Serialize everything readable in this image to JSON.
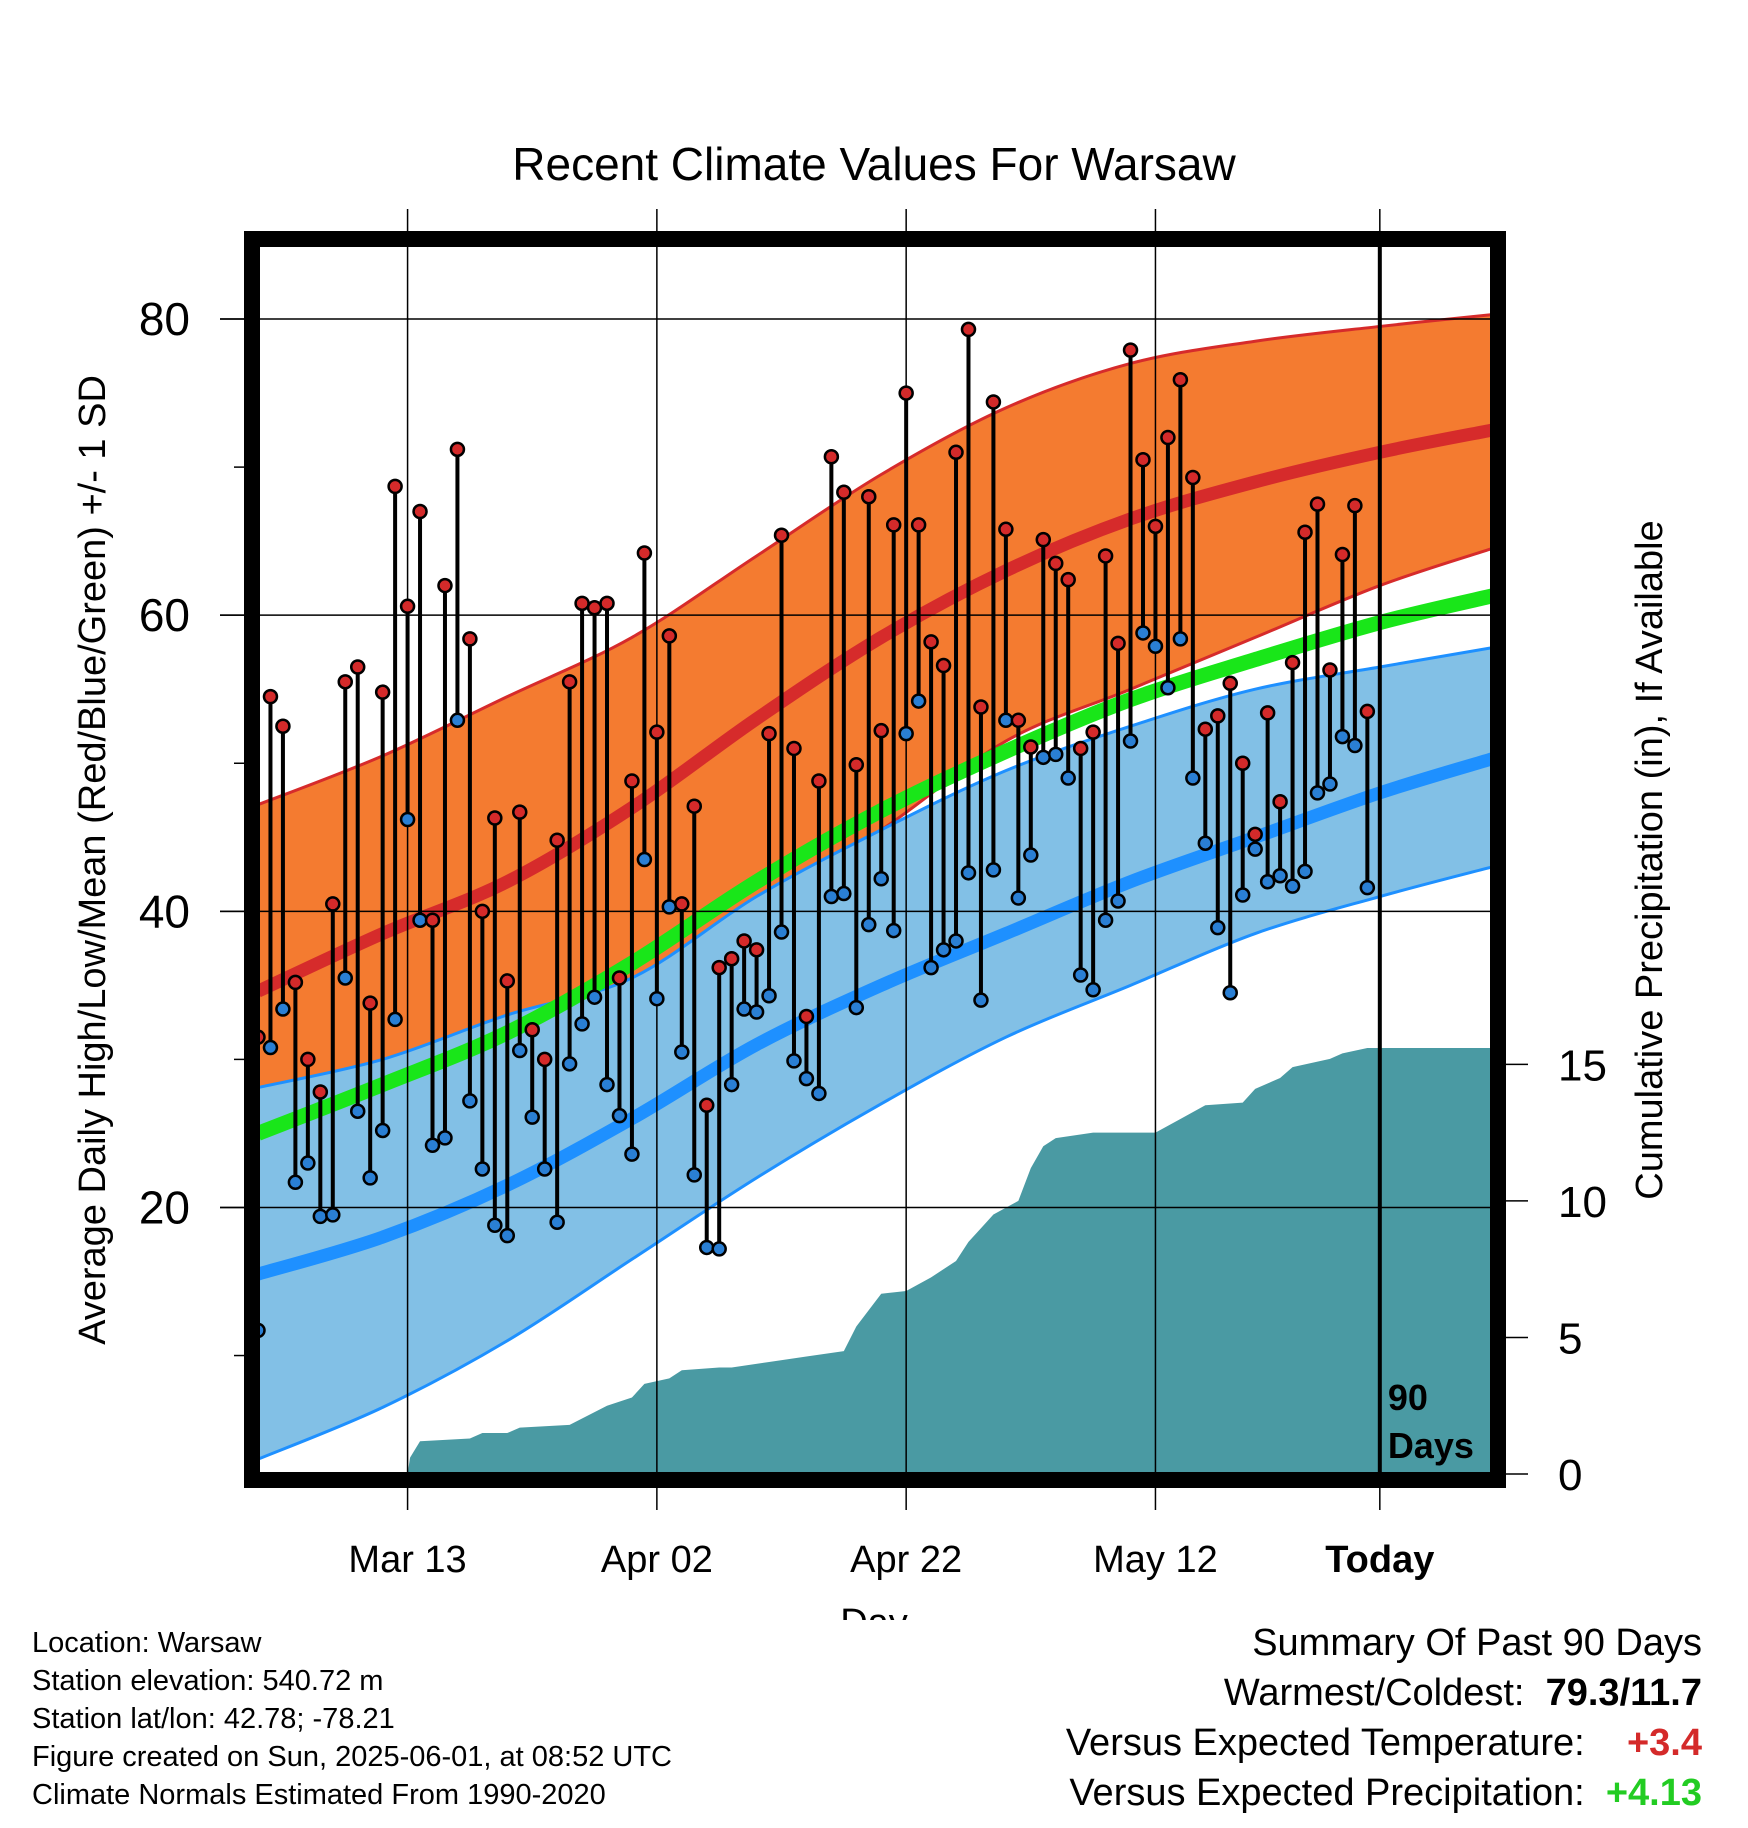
{
  "title": "Recent Climate Values For Warsaw",
  "chart_data": {
    "type": "line",
    "title": "Recent Climate Values For Warsaw",
    "xlabel": "Day",
    "ylabel": "Average Daily High/Low/Mean (Red/Blue/Green) +/- 1 SD",
    "y2label": "Cumulative Precipitation (in), If Available",
    "x_ticks": [
      "Mar 13",
      "Apr 02",
      "Apr 22",
      "May 12",
      "Today"
    ],
    "y_ticks": [
      20,
      40,
      60,
      80
    ],
    "y2_ticks": [
      0,
      5,
      10,
      15
    ],
    "ylim": [
      2,
      85
    ],
    "y2lim": [
      0,
      45
    ],
    "days": 100,
    "today_label": "90 Days",
    "grid": true,
    "colors": {
      "high_band": "#f47b30",
      "high_band_edge": "#d62b2b",
      "normal_high": "#d62b2b",
      "low_band": "#82c0e6",
      "low_band_edge": "#1e90ff",
      "normal_low": "#1e90ff",
      "normal_mean": "#19e619",
      "precip": "#4a9aa3",
      "high_marker": "#d42a2a",
      "low_marker": "#2a7fd4"
    },
    "normal_high": [
      [
        0,
        34.6
      ],
      [
        10,
        38.5
      ],
      [
        20,
        42.0
      ],
      [
        30,
        47.0
      ],
      [
        40,
        53.0
      ],
      [
        50,
        58.5
      ],
      [
        60,
        63.0
      ],
      [
        70,
        66.5
      ],
      [
        80,
        69.0
      ],
      [
        90,
        71.0
      ],
      [
        99,
        72.5
      ]
    ],
    "high_sd_upper": [
      [
        0,
        47.2
      ],
      [
        10,
        50.5
      ],
      [
        20,
        54.5
      ],
      [
        30,
        58.5
      ],
      [
        40,
        64.0
      ],
      [
        50,
        69.5
      ],
      [
        60,
        74.0
      ],
      [
        70,
        77.0
      ],
      [
        80,
        78.5
      ],
      [
        90,
        79.5
      ],
      [
        99,
        80.3
      ]
    ],
    "high_sd_lower": [
      [
        0,
        22.3
      ],
      [
        10,
        25.5
      ],
      [
        20,
        30.0
      ],
      [
        30,
        35.0
      ],
      [
        40,
        40.5
      ],
      [
        50,
        45.5
      ],
      [
        60,
        51.5
      ],
      [
        70,
        55.0
      ],
      [
        80,
        58.5
      ],
      [
        90,
        62.0
      ],
      [
        99,
        64.5
      ]
    ],
    "normal_low": [
      [
        0,
        15.5
      ],
      [
        10,
        18.0
      ],
      [
        20,
        21.5
      ],
      [
        30,
        26.0
      ],
      [
        40,
        31.0
      ],
      [
        50,
        35.0
      ],
      [
        60,
        38.5
      ],
      [
        70,
        42.0
      ],
      [
        80,
        45.0
      ],
      [
        90,
        48.0
      ],
      [
        99,
        50.3
      ]
    ],
    "low_sd_upper": [
      [
        0,
        28.1
      ],
      [
        10,
        30.0
      ],
      [
        20,
        33.0
      ],
      [
        30,
        35.5
      ],
      [
        40,
        41.0
      ],
      [
        50,
        45.5
      ],
      [
        60,
        49.5
      ],
      [
        70,
        52.5
      ],
      [
        80,
        55.0
      ],
      [
        90,
        56.5
      ],
      [
        99,
        57.8
      ]
    ],
    "low_sd_lower": [
      [
        0,
        3.0
      ],
      [
        10,
        6.5
      ],
      [
        20,
        11.0
      ],
      [
        30,
        16.5
      ],
      [
        40,
        22.0
      ],
      [
        50,
        27.0
      ],
      [
        60,
        31.5
      ],
      [
        70,
        35.0
      ],
      [
        80,
        38.5
      ],
      [
        90,
        41.0
      ],
      [
        99,
        43.0
      ]
    ],
    "normal_mean": [
      [
        0,
        25.0
      ],
      [
        10,
        28.3
      ],
      [
        20,
        31.8
      ],
      [
        30,
        36.5
      ],
      [
        40,
        42.0
      ],
      [
        50,
        46.8
      ],
      [
        60,
        50.8
      ],
      [
        70,
        54.3
      ],
      [
        80,
        57.0
      ],
      [
        90,
        59.5
      ],
      [
        99,
        61.3
      ]
    ],
    "highs": [
      31.5,
      54.5,
      52.5,
      35.2,
      30.0,
      27.8,
      40.5,
      55.5,
      56.5,
      33.8,
      54.8,
      68.7,
      60.6,
      67.0,
      39.4,
      62.0,
      71.2,
      58.4,
      40.0,
      46.3,
      35.3,
      46.7,
      32.0,
      30.0,
      44.8,
      55.5,
      60.8,
      60.5,
      60.8,
      35.5,
      48.8,
      64.2,
      52.1,
      58.6,
      40.5,
      47.1,
      26.9,
      36.2,
      36.8,
      38.0,
      37.4,
      52.0,
      65.4,
      51.0,
      32.9,
      48.8,
      70.7,
      68.3,
      49.9,
      68.0,
      52.2,
      66.1,
      75.0,
      66.1,
      58.2,
      56.6,
      71.0,
      79.3,
      53.8,
      74.4,
      65.8,
      52.9,
      51.1,
      65.1,
      63.5,
      62.4,
      51.0,
      52.1,
      64.0,
      58.1,
      77.9,
      70.5,
      66.0,
      72.0,
      75.9,
      69.3,
      52.3,
      53.2,
      55.4,
      50.0,
      45.2,
      53.4,
      47.4,
      56.8,
      65.6,
      67.5,
      56.3,
      64.1,
      67.4,
      53.5
    ],
    "lows": [
      11.7,
      30.8,
      33.4,
      21.7,
      23.0,
      19.4,
      19.5,
      35.5,
      26.5,
      22.0,
      25.2,
      32.7,
      46.2,
      39.4,
      24.2,
      24.7,
      52.9,
      27.2,
      22.6,
      18.8,
      18.1,
      30.6,
      26.1,
      22.6,
      19.0,
      29.7,
      32.4,
      34.2,
      28.3,
      26.2,
      23.6,
      43.5,
      34.1,
      40.3,
      30.5,
      22.2,
      17.3,
      17.2,
      28.3,
      33.4,
      33.2,
      34.3,
      38.6,
      29.9,
      28.7,
      27.7,
      41.0,
      41.2,
      33.5,
      39.1,
      42.2,
      38.7,
      52.0,
      54.2,
      36.2,
      37.4,
      38.0,
      42.6,
      34.0,
      42.8,
      52.9,
      40.9,
      43.8,
      50.4,
      50.6,
      49.0,
      35.7,
      34.7,
      39.4,
      40.7,
      51.5,
      58.8,
      57.9,
      55.1,
      58.4,
      49.0,
      44.6,
      38.9,
      34.5,
      41.1,
      44.2,
      42.0,
      42.4,
      41.7,
      42.7,
      48.0,
      48.6,
      51.8,
      51.2,
      41.6
    ],
    "precip_cumulative": [
      [
        0,
        0
      ],
      [
        12,
        0
      ],
      [
        12.2,
        0.6
      ],
      [
        13,
        1.2
      ],
      [
        17,
        1.3
      ],
      [
        18,
        1.5
      ],
      [
        20,
        1.5
      ],
      [
        21,
        1.7
      ],
      [
        25,
        1.8
      ],
      [
        28,
        2.5
      ],
      [
        30,
        2.8
      ],
      [
        31,
        3.3
      ],
      [
        33,
        3.5
      ],
      [
        34,
        3.8
      ],
      [
        37,
        3.9
      ],
      [
        38,
        3.9
      ],
      [
        41,
        4.1
      ],
      [
        44,
        4.3
      ],
      [
        47,
        4.5
      ],
      [
        48,
        5.4
      ],
      [
        49,
        6.0
      ],
      [
        50,
        6.6
      ],
      [
        52,
        6.7
      ],
      [
        54,
        7.2
      ],
      [
        56,
        7.8
      ],
      [
        57,
        8.5
      ],
      [
        58,
        9.0
      ],
      [
        59,
        9.5
      ],
      [
        61,
        10.0
      ],
      [
        62,
        11.2
      ],
      [
        63,
        12.0
      ],
      [
        64,
        12.3
      ],
      [
        67,
        12.5
      ],
      [
        72,
        12.5
      ],
      [
        74,
        13.0
      ],
      [
        76,
        13.5
      ],
      [
        79,
        13.6
      ],
      [
        80,
        14.1
      ],
      [
        82,
        14.5
      ],
      [
        83,
        14.9
      ],
      [
        86,
        15.2
      ],
      [
        87,
        15.4
      ],
      [
        89,
        15.6
      ],
      [
        90,
        15.6
      ],
      [
        99,
        15.6
      ]
    ],
    "today_index": 90
  },
  "meta": {
    "location": "Location: Warsaw",
    "elevation": "Station elevation: 540.72 m",
    "latlon": "Station lat/lon: 42.78; -78.21",
    "created": "Figure created on Sun, 2025-06-01, at 08:52 UTC",
    "normals": "Climate Normals Estimated From 1990-2020"
  },
  "summary": {
    "title": "Summary Of Past 90 Days",
    "warmest_label": "Warmest/Coldest:",
    "warmest_value": "79.3/11.7",
    "temp_label": "Versus Expected Temperature:",
    "temp_value": "+3.4",
    "precip_label": "Versus Expected Precipitation:",
    "precip_value": "+4.13"
  }
}
